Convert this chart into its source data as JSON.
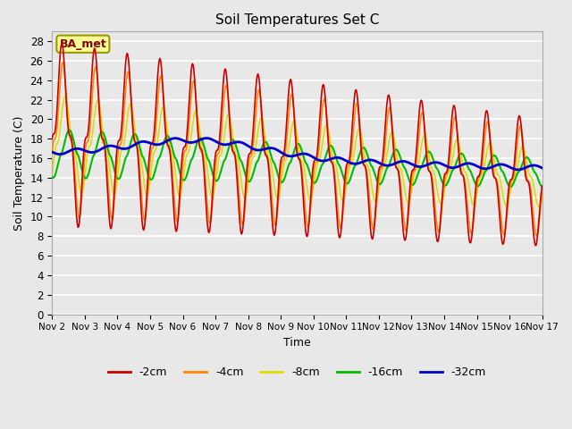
{
  "title": "Soil Temperatures Set C",
  "xlabel": "Time",
  "ylabel": "Soil Temperature (C)",
  "ylim": [
    0,
    29
  ],
  "yticks": [
    0,
    2,
    4,
    6,
    8,
    10,
    12,
    14,
    16,
    18,
    20,
    22,
    24,
    26,
    28
  ],
  "annotation": "BA_met",
  "background_color": "#e8e8e8",
  "legend_labels": [
    "-2cm",
    "-4cm",
    "-8cm",
    "-16cm",
    "-32cm"
  ],
  "legend_colors": [
    "#cc0000",
    "#ff8800",
    "#dddd00",
    "#00bb00",
    "#0000cc"
  ],
  "line_widths": [
    1.2,
    1.2,
    1.2,
    1.5,
    2.0
  ],
  "x_tick_labels": [
    "Nov 2",
    "Nov 3",
    "Nov 4",
    "Nov 5",
    "Nov 6",
    "Nov 7",
    "Nov 8",
    "Nov 9",
    "Nov 10",
    "Nov 11",
    "Nov 12",
    "Nov 13",
    "Nov 14",
    "Nov 15",
    "Nov 16",
    "Nov 17"
  ],
  "num_days": 15,
  "points_per_day": 48
}
